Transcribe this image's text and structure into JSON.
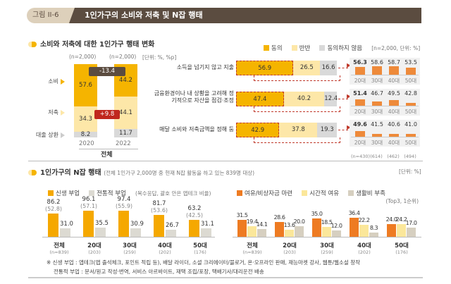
{
  "header": {
    "figure_label": "그림 II-6",
    "title": "1인가구의 소비와 저축 및 N잡 행태"
  },
  "section1": {
    "title": "소비와 저축에 대한 1인가구 행태 변화",
    "left_unit": "[단위: %, %p]",
    "right_unit": "[n=2,000, 단위: %]"
  },
  "colors": {
    "agree": "#f5b400",
    "half": "#fde7a8",
    "disagree": "#d9d9d9",
    "newjob": "#f5a800",
    "tradjob": "#dcdad2",
    "reason1": "#ee7b22",
    "reason2": "#fbe79a",
    "reason3": "#d6cfc0",
    "dashed": "#c0392b",
    "header": "#5b4c40"
  },
  "chart_data": [
    {
      "type": "bar",
      "stacked": true,
      "categories": [
        "2020",
        "2022"
      ],
      "group_label": "전체",
      "n_labels": [
        "(n=2,000)",
        "(n=2,000)"
      ],
      "series": [
        {
          "name": "소비",
          "values": [
            57.6,
            44.2
          ]
        },
        {
          "name": "저축",
          "values": [
            34.3,
            44.1
          ]
        },
        {
          "name": "대출 상환",
          "values": [
            8.2,
            11.7
          ]
        }
      ],
      "annotations": [
        {
          "text": "-13.4",
          "series": "소비"
        },
        {
          "text": "+9.8",
          "series": "저축"
        }
      ],
      "ylim": [
        0,
        100
      ]
    },
    {
      "type": "bar",
      "orientation": "horizontal",
      "stacked": true,
      "categories": [
        "소득을 넘기지 않고 지출",
        "금융환경이나 내 상황을 고려해 정기적으로 자산을 점검·조정",
        "매달 소비와 저축금액을 정해 둠"
      ],
      "series": [
        {
          "name": "동의",
          "values": [
            56.9,
            47.4,
            42.9
          ]
        },
        {
          "name": "반반",
          "values": [
            26.5,
            40.2,
            37.8
          ]
        },
        {
          "name": "동의하지 않음",
          "values": [
            16.6,
            12.4,
            19.3
          ]
        }
      ],
      "xlim": [
        0,
        100
      ]
    },
    {
      "type": "bar",
      "title": "",
      "categories": [
        "20대",
        "30대",
        "40대",
        "50대"
      ],
      "n_labels": [
        "(n=430)",
        "(614)",
        "(462)",
        "(494)"
      ],
      "series": [
        {
          "values": [
            56.3,
            58.6,
            58.7,
            53.5
          ]
        },
        {
          "values": [
            51.4,
            46.7,
            49.5,
            42.8
          ]
        },
        {
          "values": [
            49.6,
            41.5,
            40.6,
            41.0
          ]
        }
      ]
    },
    {
      "type": "bar",
      "categories": [
        "전체",
        "20대",
        "30대",
        "40대",
        "50대"
      ],
      "n_labels": [
        "(n=839)",
        "(203)",
        "(259)",
        "(202)",
        "(176)"
      ],
      "series": [
        {
          "name": "신생 부업",
          "values": [
            86.2,
            96.1,
            97.4,
            81.7,
            63.2
          ],
          "paren": [
            "(52.8)",
            "(57.1)",
            "(55.9)",
            "(53.6)",
            "(42.5)"
          ]
        },
        {
          "name": "전통적 부업",
          "values": [
            31.0,
            35.5,
            30.9,
            26.7,
            31.1
          ]
        }
      ],
      "note": "(복수응답, 괄호 안은 앱테크 비율)"
    },
    {
      "type": "bar",
      "categories": [
        "전체",
        "20대",
        "30대",
        "40대",
        "50대"
      ],
      "n_labels": [
        "(n=839)",
        "(203)",
        "(259)",
        "(202)",
        "(176)"
      ],
      "series": [
        {
          "name": "여유/비상자금 마련",
          "values": [
            31.5,
            28.6,
            35.0,
            36.4,
            24.0
          ]
        },
        {
          "name": "시간적 여유",
          "values": [
            19.4,
            13.6,
            18.5,
            22.2,
            24.2
          ]
        },
        {
          "name": "생활비 부족",
          "values": [
            14.1,
            20.0,
            12.0,
            8.3,
            17.0
          ]
        }
      ],
      "note": "(Top3, 1순위)"
    }
  ],
  "section2": {
    "title": "1인가구의 N잡 행태",
    "subtitle": "(전체 1인가구 2,000명 중 현재 N잡 활동을 하고 있는 839명 대상)",
    "unit": "[단위: %]"
  },
  "footnote": {
    "line1": "※ 신생 부업 : 앱테크(앱 출석체크, 포인트 적립 등), 배달 라이더, 소셜 크리에이터/블로거, 온·오프라인 판매, 재능마켓 강사, 웹툰/웹소설 창작",
    "line2": "전통적 부업 : 문서/원고 작성·번역, 서비스 아르바이트, 재택 조립/포장, 택배기사/대리운전 배송"
  }
}
